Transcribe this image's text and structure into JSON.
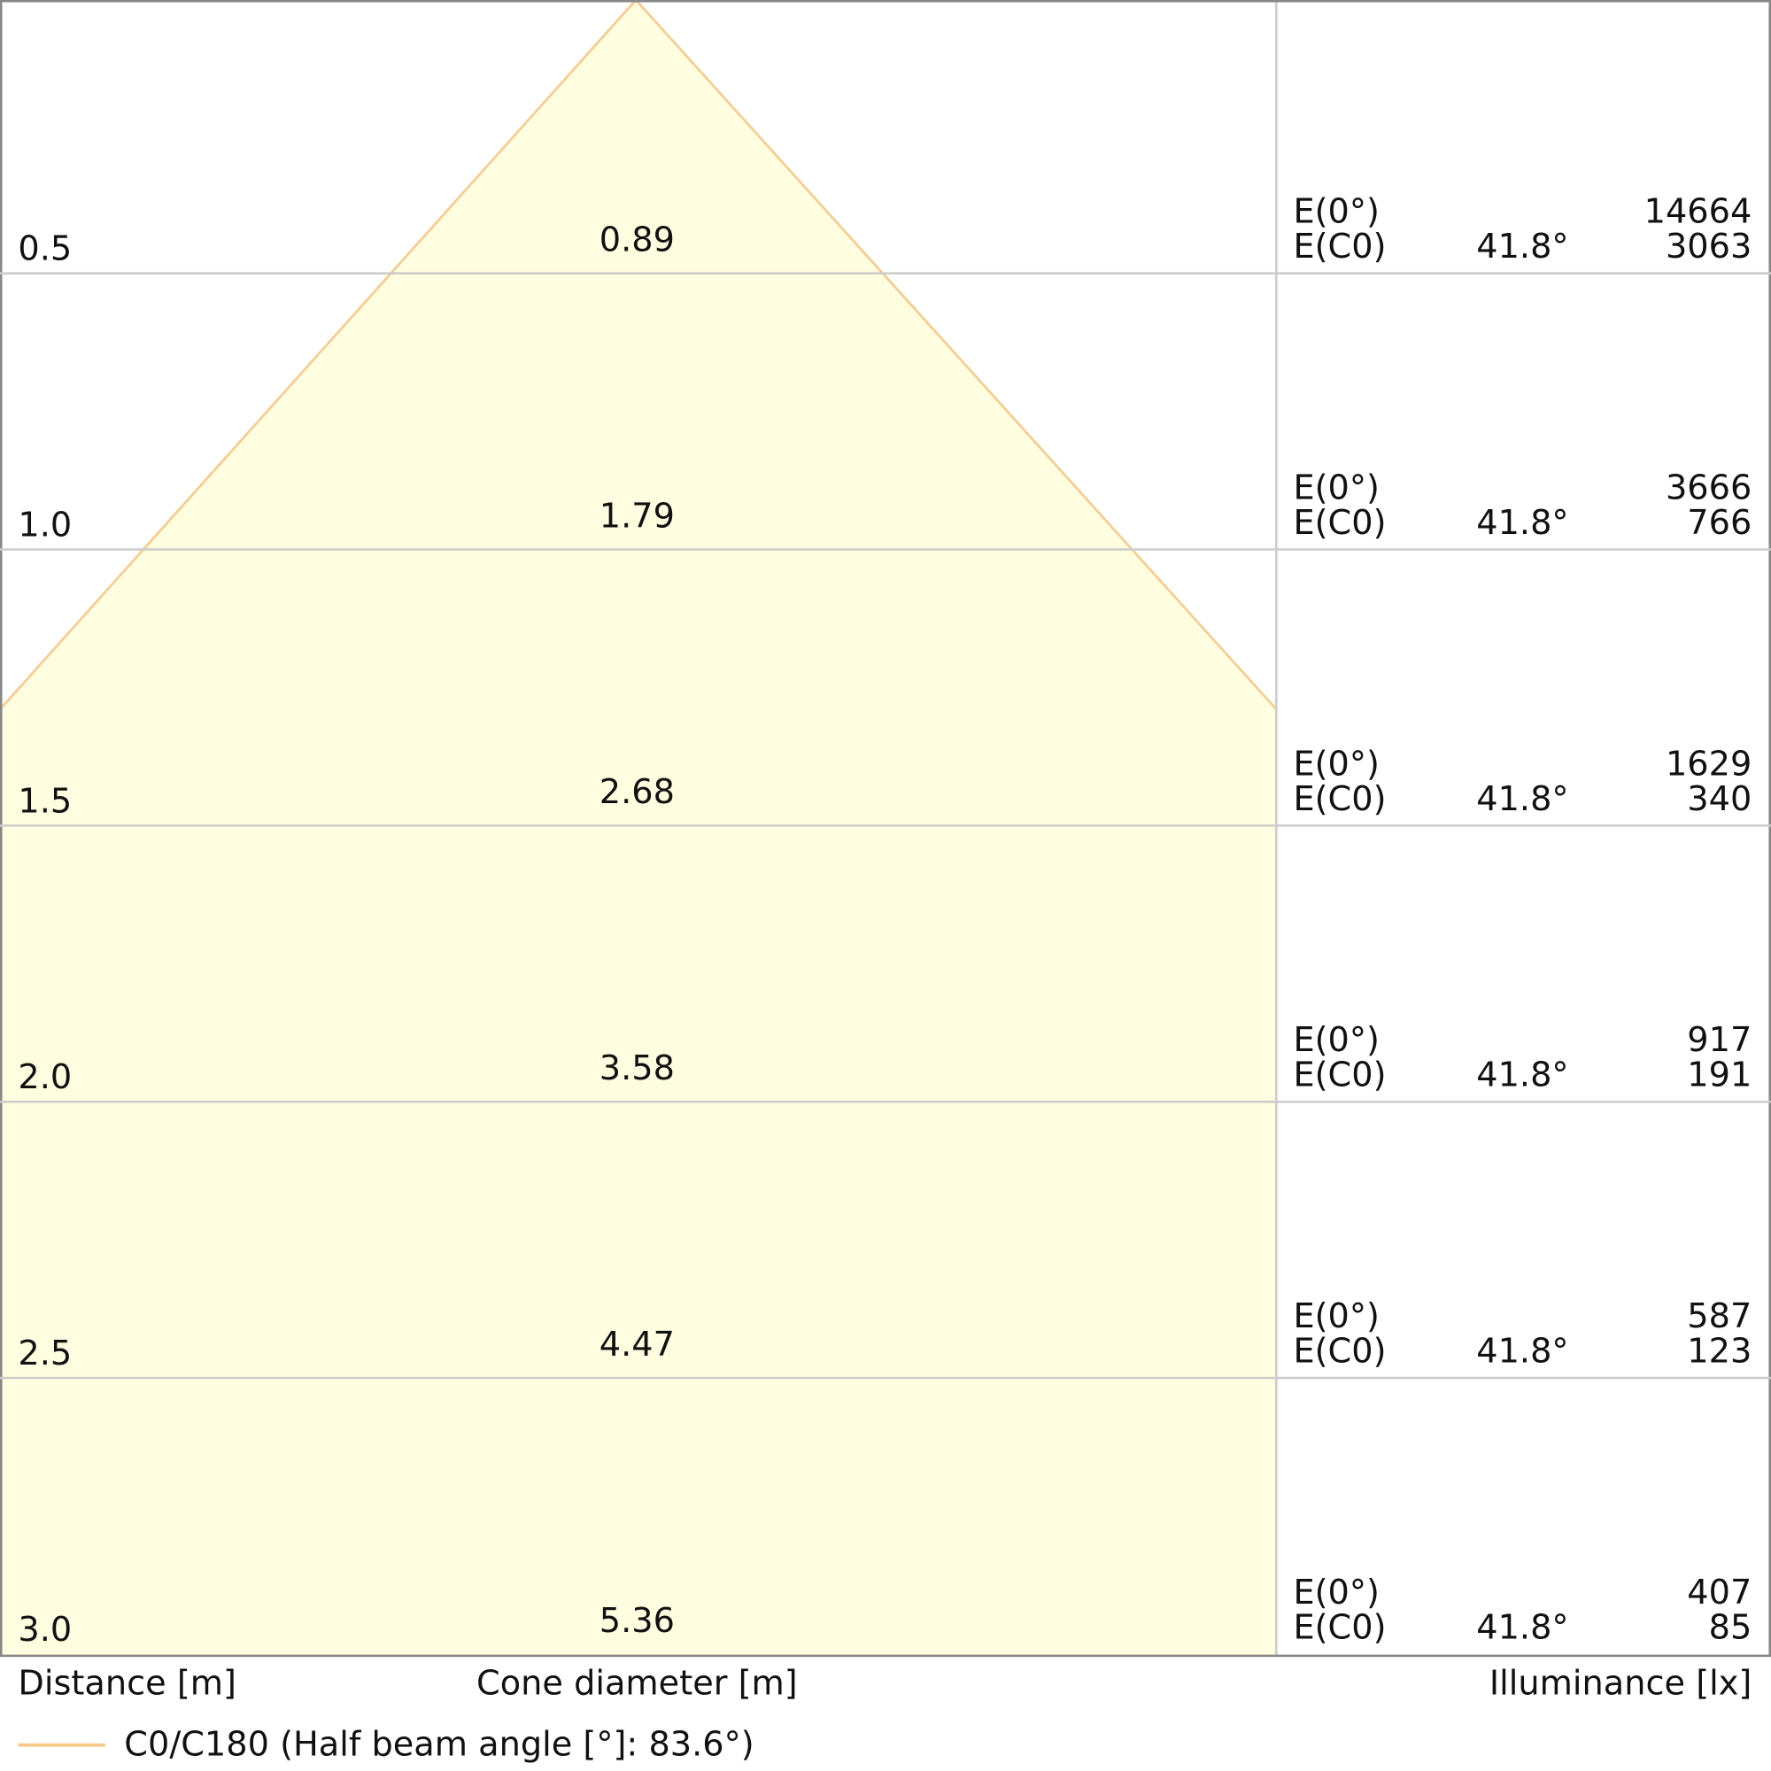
{
  "rows": [
    {
      "distance": "0.5",
      "diameter": "0.89",
      "e0_label": "E(0°)",
      "e0": "14664",
      "ec0_label": "E(C0)",
      "angle": "41.8°",
      "ec0": "3063"
    },
    {
      "distance": "1.0",
      "diameter": "1.79",
      "e0_label": "E(0°)",
      "e0": "3666",
      "ec0_label": "E(C0)",
      "angle": "41.8°",
      "ec0": "766"
    },
    {
      "distance": "1.5",
      "diameter": "2.68",
      "e0_label": "E(0°)",
      "e0": "1629",
      "ec0_label": "E(C0)",
      "angle": "41.8°",
      "ec0": "340"
    },
    {
      "distance": "2.0",
      "diameter": "3.58",
      "e0_label": "E(0°)",
      "e0": "917",
      "ec0_label": "E(C0)",
      "angle": "41.8°",
      "ec0": "191"
    },
    {
      "distance": "2.5",
      "diameter": "4.47",
      "e0_label": "E(0°)",
      "e0": "587",
      "ec0_label": "E(C0)",
      "angle": "41.8°",
      "ec0": "123"
    },
    {
      "distance": "3.0",
      "diameter": "5.36",
      "e0_label": "E(0°)",
      "e0": "407",
      "ec0_label": "E(C0)",
      "angle": "41.8°",
      "ec0": "85"
    }
  ],
  "labels": {
    "distance": "Distance [m]",
    "diameter": "Cone diameter [m]",
    "illuminance": "Illuminance [lx]"
  },
  "legend": "C0/C180 (Half beam angle [°]: 83.6°)"
}
